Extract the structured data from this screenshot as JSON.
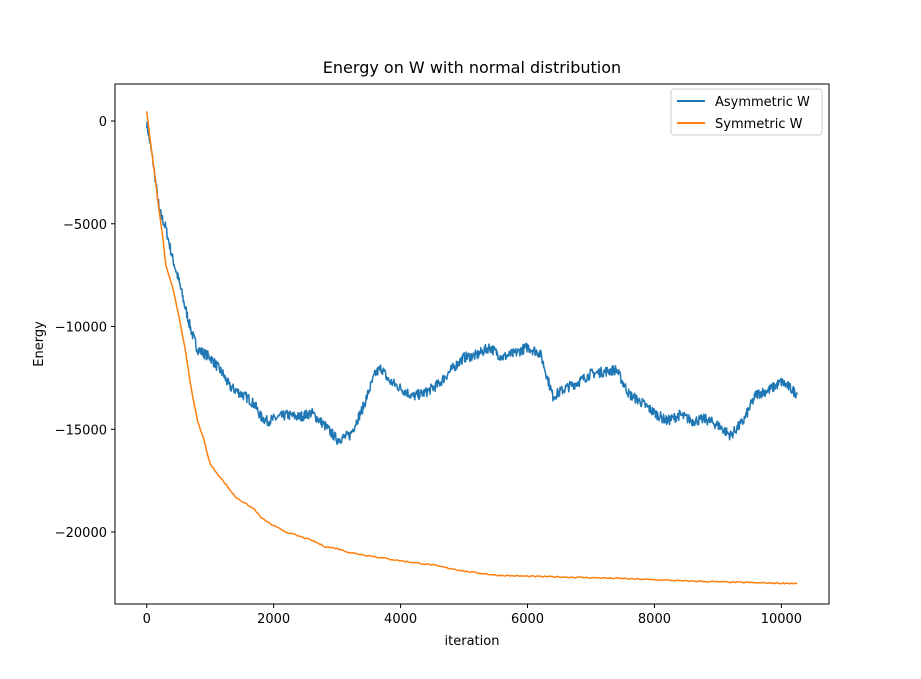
{
  "chart_data": {
    "type": "line",
    "title": "Energy on W with normal distribution",
    "xlabel": "iteration",
    "ylabel": "Energy",
    "xlim": [
      -500,
      10750
    ],
    "ylim": [
      -23500,
      1800
    ],
    "xticks": [
      0,
      2000,
      4000,
      6000,
      8000,
      10000
    ],
    "xtick_labels": [
      "0",
      "2000",
      "4000",
      "6000",
      "8000",
      "10000"
    ],
    "yticks": [
      0,
      -5000,
      -10000,
      -15000,
      -20000
    ],
    "ytick_labels": [
      "0",
      "−5000",
      "−10000",
      "−15000",
      "−20000"
    ],
    "grid": false,
    "legend_position": "top-right",
    "series": [
      {
        "name": "Asymmetric W",
        "color": "#1f77b4",
        "x": [
          0,
          100,
          200,
          300,
          400,
          500,
          600,
          700,
          800,
          900,
          1000,
          1100,
          1200,
          1300,
          1400,
          1500,
          1600,
          1700,
          1800,
          1900,
          2000,
          2200,
          2400,
          2600,
          2800,
          3000,
          3200,
          3400,
          3600,
          3700,
          3800,
          4000,
          4200,
          4400,
          4600,
          4800,
          5000,
          5200,
          5400,
          5600,
          5800,
          6000,
          6200,
          6400,
          6600,
          6800,
          7000,
          7200,
          7400,
          7600,
          7800,
          8000,
          8200,
          8400,
          8600,
          8800,
          9000,
          9200,
          9400,
          9600,
          9800,
          10000,
          10100,
          10250
        ],
        "values": [
          -100,
          -2000,
          -4400,
          -5200,
          -6600,
          -7700,
          -9000,
          -10200,
          -11100,
          -11300,
          -11500,
          -11900,
          -12300,
          -12900,
          -13100,
          -13300,
          -13500,
          -13800,
          -14400,
          -14600,
          -14500,
          -14300,
          -14400,
          -14200,
          -14800,
          -15500,
          -15300,
          -14000,
          -12300,
          -12000,
          -12600,
          -13000,
          -13400,
          -13200,
          -12800,
          -12100,
          -11500,
          -11400,
          -11000,
          -11500,
          -11300,
          -11000,
          -11300,
          -13400,
          -13000,
          -12700,
          -12300,
          -12200,
          -12100,
          -13300,
          -13700,
          -14200,
          -14600,
          -14300,
          -14600,
          -14500,
          -14800,
          -15300,
          -14600,
          -13300,
          -13100,
          -12700,
          -12900,
          -13300
        ]
      },
      {
        "name": "Symmetric W",
        "color": "#ff7f0e",
        "x": [
          0,
          50,
          100,
          150,
          200,
          250,
          300,
          400,
          500,
          600,
          700,
          800,
          900,
          1000,
          1100,
          1200,
          1300,
          1400,
          1500,
          1600,
          1700,
          1800,
          2000,
          2200,
          2400,
          2600,
          2800,
          3000,
          3200,
          3400,
          3600,
          3800,
          4000,
          4500,
          5000,
          5500,
          6000,
          6500,
          7000,
          7500,
          8000,
          8500,
          9000,
          9500,
          10000,
          10250
        ],
        "values": [
          500,
          -800,
          -2000,
          -3200,
          -4500,
          -5600,
          -7000,
          -8000,
          -9400,
          -11000,
          -13000,
          -14600,
          -15500,
          -16700,
          -17100,
          -17500,
          -17900,
          -18300,
          -18500,
          -18700,
          -18900,
          -19300,
          -19700,
          -20000,
          -20200,
          -20400,
          -20700,
          -20800,
          -21000,
          -21100,
          -21200,
          -21300,
          -21400,
          -21600,
          -21900,
          -22100,
          -22150,
          -22180,
          -22220,
          -22260,
          -22320,
          -22380,
          -22420,
          -22460,
          -22490,
          -22500
        ]
      }
    ]
  }
}
